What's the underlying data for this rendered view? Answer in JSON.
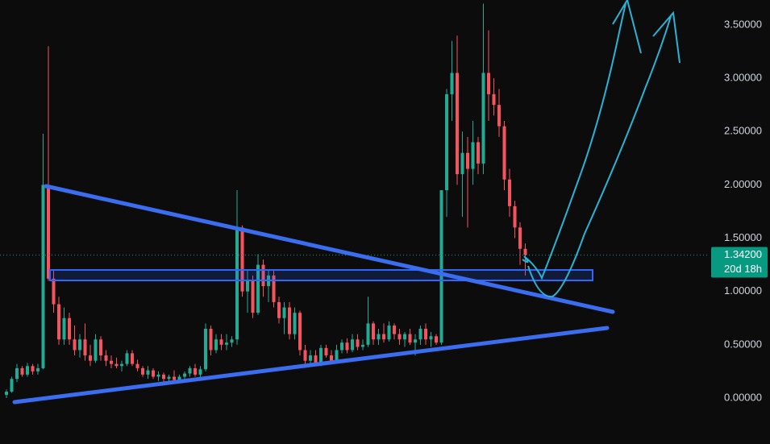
{
  "chart_data": {
    "type": "candlestick",
    "up_color": "#22ab94",
    "down_color": "#f7525f",
    "open": [
      0.03,
      0.06,
      0.18,
      0.28,
      0.22,
      0.3,
      0.25,
      0.28,
      2.0,
      1.12,
      0.88,
      0.55,
      0.75,
      0.55,
      0.45,
      0.55,
      0.4,
      0.35,
      0.55,
      0.4,
      0.35,
      0.32,
      0.3,
      0.32,
      0.42,
      0.32,
      0.28,
      0.22,
      0.26,
      0.2,
      0.22,
      0.18,
      0.2,
      0.17,
      0.2,
      0.23,
      0.28,
      0.22,
      0.27,
      0.65,
      0.45,
      0.55,
      0.5,
      0.52,
      0.55,
      1.6,
      1.0,
      1.1,
      0.8,
      1.25,
      1.05,
      1.15,
      0.9,
      0.75,
      0.85,
      0.6,
      0.8,
      0.45,
      0.35,
      0.4,
      0.33,
      0.47,
      0.4,
      0.35,
      0.45,
      0.52,
      0.45,
      0.55,
      0.48,
      0.5,
      0.7,
      0.55,
      0.6,
      0.55,
      0.68,
      0.6,
      0.55,
      0.6,
      0.52,
      0.55,
      0.65,
      0.55,
      0.58,
      0.52,
      1.95,
      2.85,
      3.05,
      2.1,
      2.3,
      2.15,
      2.4,
      2.2,
      3.05,
      2.85,
      2.75,
      2.55,
      2.05,
      1.8,
      1.6,
      1.4
    ],
    "high": [
      0.08,
      0.2,
      0.32,
      0.3,
      0.33,
      0.32,
      0.32,
      2.48,
      3.3,
      1.2,
      0.95,
      0.85,
      0.8,
      0.68,
      0.6,
      0.7,
      0.5,
      0.6,
      0.58,
      0.45,
      0.4,
      0.38,
      0.35,
      0.45,
      0.45,
      0.36,
      0.3,
      0.3,
      0.28,
      0.25,
      0.24,
      0.22,
      0.26,
      0.22,
      0.25,
      0.3,
      0.32,
      0.3,
      0.7,
      0.68,
      0.6,
      0.6,
      0.6,
      0.58,
      1.95,
      1.62,
      1.2,
      1.15,
      1.35,
      1.3,
      1.2,
      1.2,
      0.95,
      0.9,
      0.9,
      0.85,
      0.82,
      0.5,
      0.45,
      0.45,
      0.5,
      0.5,
      0.45,
      0.5,
      0.55,
      0.56,
      0.6,
      0.6,
      0.55,
      0.95,
      0.72,
      0.65,
      0.7,
      0.72,
      0.7,
      0.65,
      0.62,
      0.65,
      0.6,
      0.68,
      0.7,
      0.62,
      0.6,
      1.95,
      2.9,
      3.35,
      3.4,
      2.5,
      2.45,
      2.6,
      2.45,
      3.7,
      3.45,
      3.0,
      2.9,
      2.6,
      2.15,
      1.85,
      1.65,
      1.45
    ],
    "low": [
      0.0,
      0.05,
      0.15,
      0.2,
      0.2,
      0.22,
      0.22,
      0.27,
      1.1,
      0.8,
      0.5,
      0.5,
      0.5,
      0.4,
      0.38,
      0.35,
      0.3,
      0.33,
      0.35,
      0.3,
      0.28,
      0.28,
      0.25,
      0.3,
      0.3,
      0.25,
      0.2,
      0.18,
      0.18,
      0.16,
      0.15,
      0.14,
      0.15,
      0.14,
      0.18,
      0.2,
      0.2,
      0.18,
      0.25,
      0.4,
      0.42,
      0.45,
      0.45,
      0.48,
      0.5,
      0.95,
      0.8,
      0.75,
      0.78,
      0.95,
      0.9,
      0.85,
      0.7,
      0.6,
      0.55,
      0.55,
      0.4,
      0.32,
      0.3,
      0.3,
      0.3,
      0.38,
      0.32,
      0.33,
      0.42,
      0.42,
      0.43,
      0.45,
      0.45,
      0.48,
      0.5,
      0.5,
      0.52,
      0.53,
      0.55,
      0.5,
      0.48,
      0.5,
      0.4,
      0.5,
      0.5,
      0.48,
      0.5,
      0.5,
      1.7,
      2.6,
      2.0,
      1.7,
      1.6,
      2.0,
      2.1,
      2.1,
      2.6,
      2.65,
      2.45,
      1.95,
      1.7,
      1.5,
      1.25,
      1.15
    ],
    "close": [
      0.06,
      0.18,
      0.28,
      0.22,
      0.3,
      0.25,
      0.28,
      2.0,
      1.12,
      0.88,
      0.55,
      0.75,
      0.55,
      0.45,
      0.55,
      0.4,
      0.35,
      0.55,
      0.4,
      0.35,
      0.32,
      0.3,
      0.32,
      0.42,
      0.32,
      0.28,
      0.22,
      0.26,
      0.2,
      0.22,
      0.18,
      0.2,
      0.17,
      0.2,
      0.23,
      0.28,
      0.22,
      0.27,
      0.65,
      0.45,
      0.55,
      0.5,
      0.52,
      0.55,
      1.6,
      1.0,
      1.1,
      0.8,
      1.25,
      1.05,
      1.15,
      0.9,
      0.75,
      0.85,
      0.6,
      0.8,
      0.45,
      0.35,
      0.4,
      0.33,
      0.47,
      0.4,
      0.35,
      0.45,
      0.52,
      0.45,
      0.55,
      0.48,
      0.5,
      0.7,
      0.55,
      0.6,
      0.55,
      0.68,
      0.6,
      0.55,
      0.6,
      0.52,
      0.55,
      0.65,
      0.55,
      0.58,
      0.52,
      1.95,
      2.85,
      3.05,
      2.1,
      2.3,
      2.15,
      2.4,
      2.2,
      3.05,
      2.85,
      2.75,
      2.55,
      2.05,
      1.8,
      1.6,
      1.4,
      1.342
    ],
    "ylim": [
      -0.431,
      3.734
    ],
    "yticks": [
      {
        "value": 0,
        "label": "0.00000"
      },
      {
        "value": 0.5,
        "label": "0.50000"
      },
      {
        "value": 1,
        "label": "1.00000"
      },
      {
        "value": 1.5,
        "label": "1.50000"
      },
      {
        "value": 2,
        "label": "2.00000"
      },
      {
        "value": 2.5,
        "label": "2.50000"
      },
      {
        "value": 3,
        "label": "3.00000"
      },
      {
        "value": 3.5,
        "label": "3.50000"
      }
    ],
    "last_price": {
      "value": 1.342,
      "label": "1.34200"
    },
    "countdown": "20d 18h",
    "label_color": "#089981"
  }
}
